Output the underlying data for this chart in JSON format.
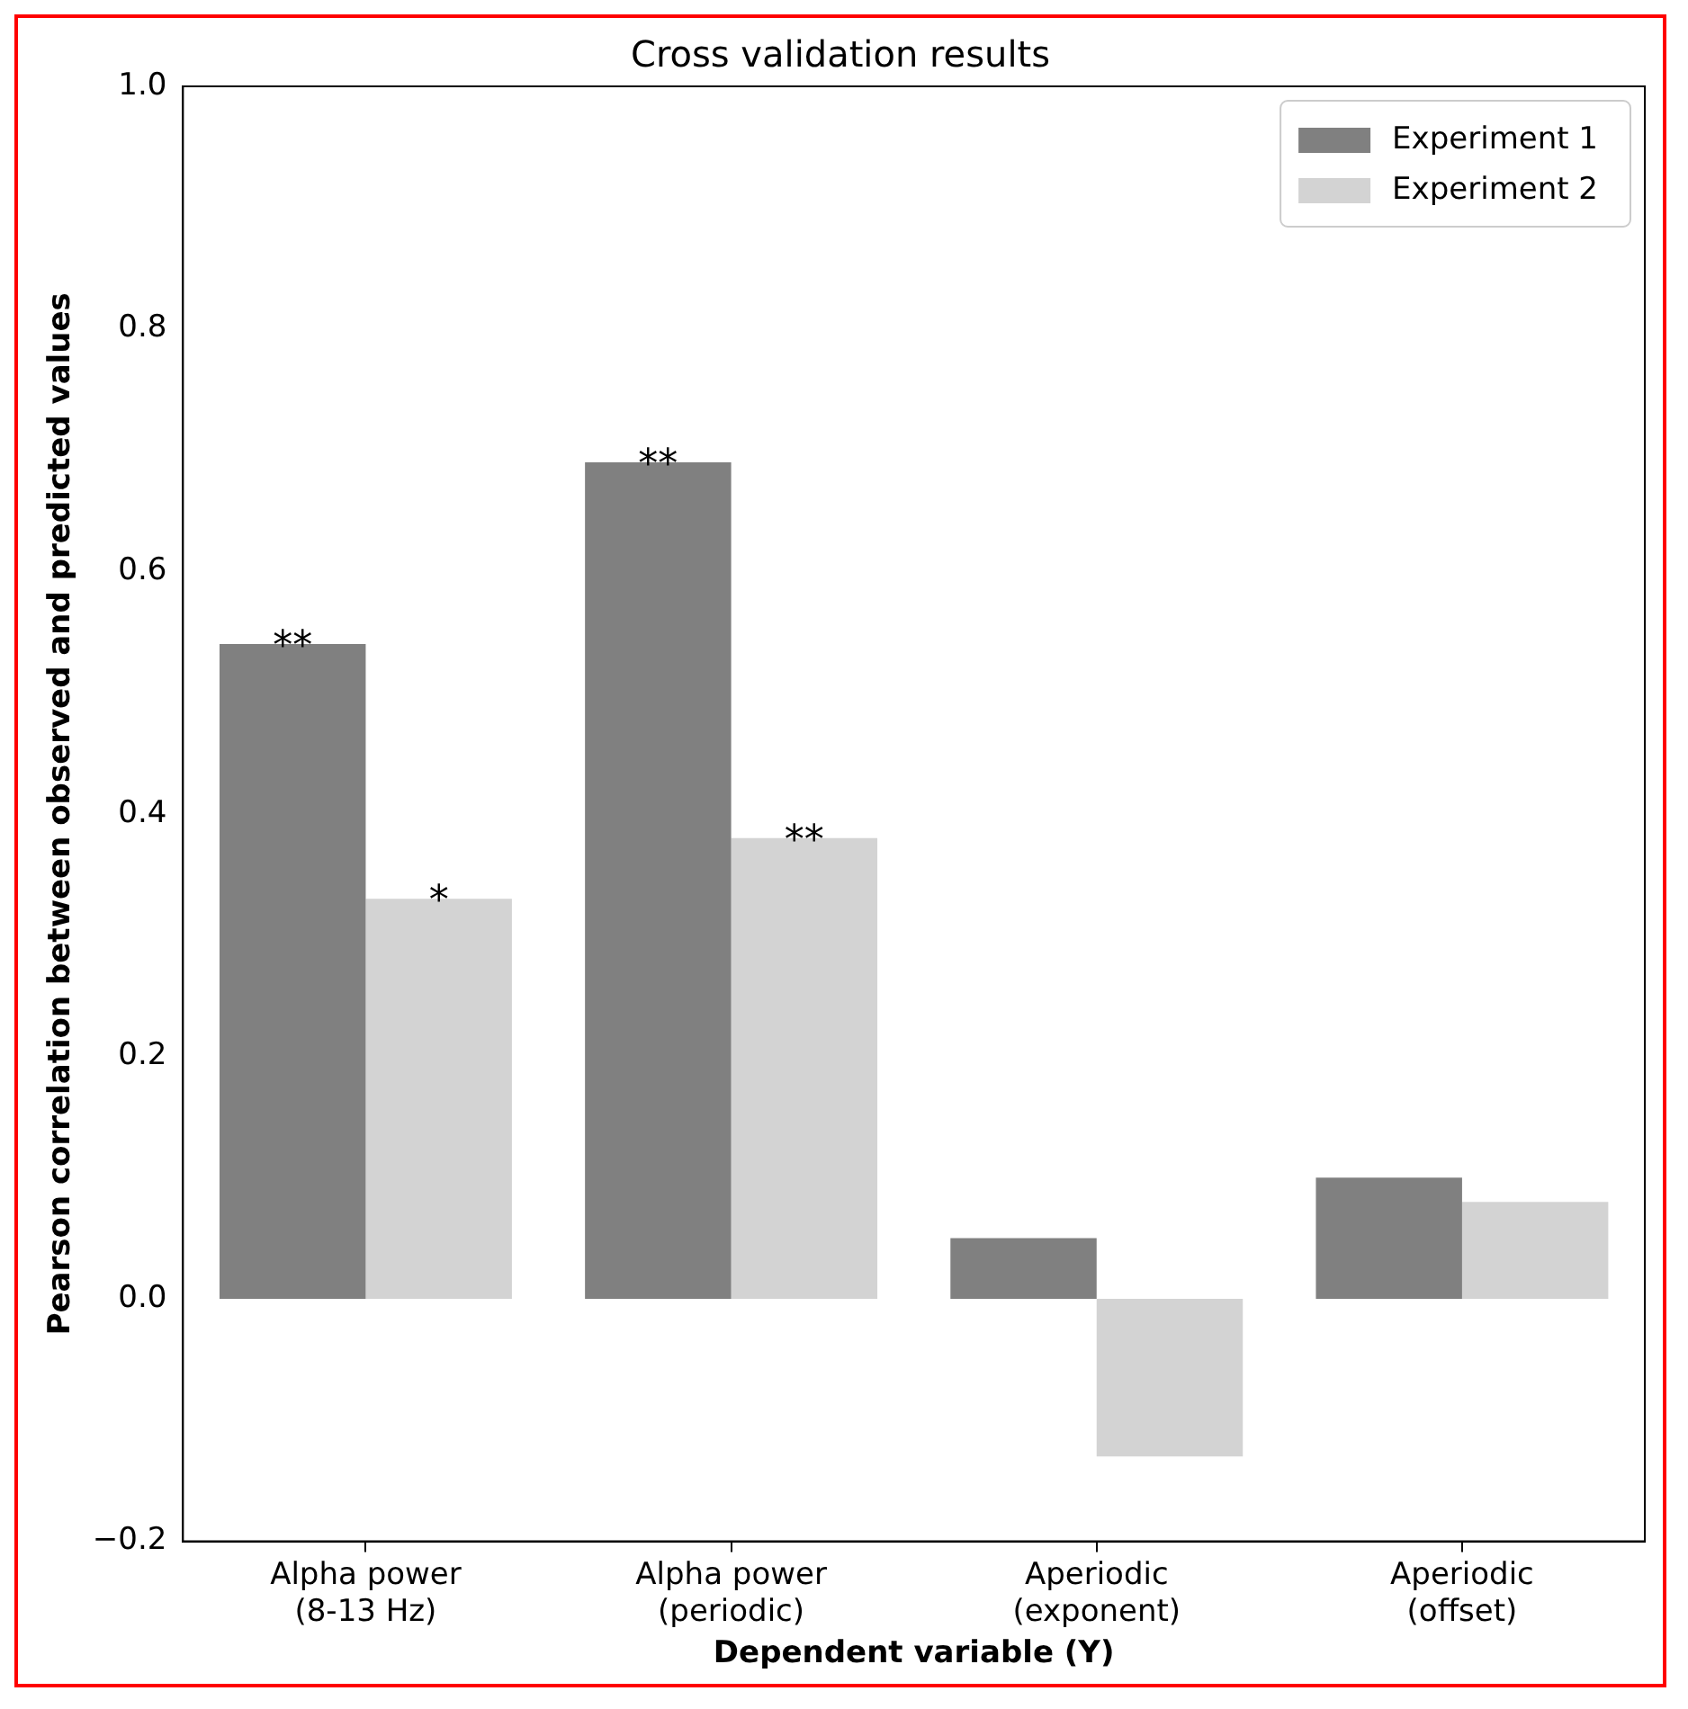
{
  "chart_data": {
    "type": "bar",
    "title": "Cross validation results",
    "xlabel": "Dependent variable (Y)",
    "ylabel": "Pearson correlation between observed and predicted values",
    "categories": [
      "Alpha power\n(8-13 Hz)",
      "Alpha power\n(periodic)",
      "Aperiodic\n(exponent)",
      "Aperiodic\n(offset)"
    ],
    "series": [
      {
        "name": "Experiment 1",
        "color": "#808080",
        "values": [
          0.54,
          0.69,
          0.05,
          0.1
        ],
        "value_labels": [
          "**",
          "**",
          null,
          null
        ]
      },
      {
        "name": "Experiment 2",
        "color": "#d3d3d3",
        "values": [
          0.33,
          0.38,
          -0.13,
          0.08
        ],
        "value_labels": [
          "*",
          "**",
          null,
          null
        ]
      }
    ],
    "ylim": [
      -0.2,
      1.0
    ],
    "yticks": [
      {
        "value": -0.2,
        "label": "−0.2"
      },
      {
        "value": 0,
        "label": "0.0"
      },
      0.2,
      0.4,
      0.6,
      0.8,
      {
        "value": 1,
        "label": "1.0"
      }
    ],
    "grid": false,
    "legend": "top right"
  }
}
